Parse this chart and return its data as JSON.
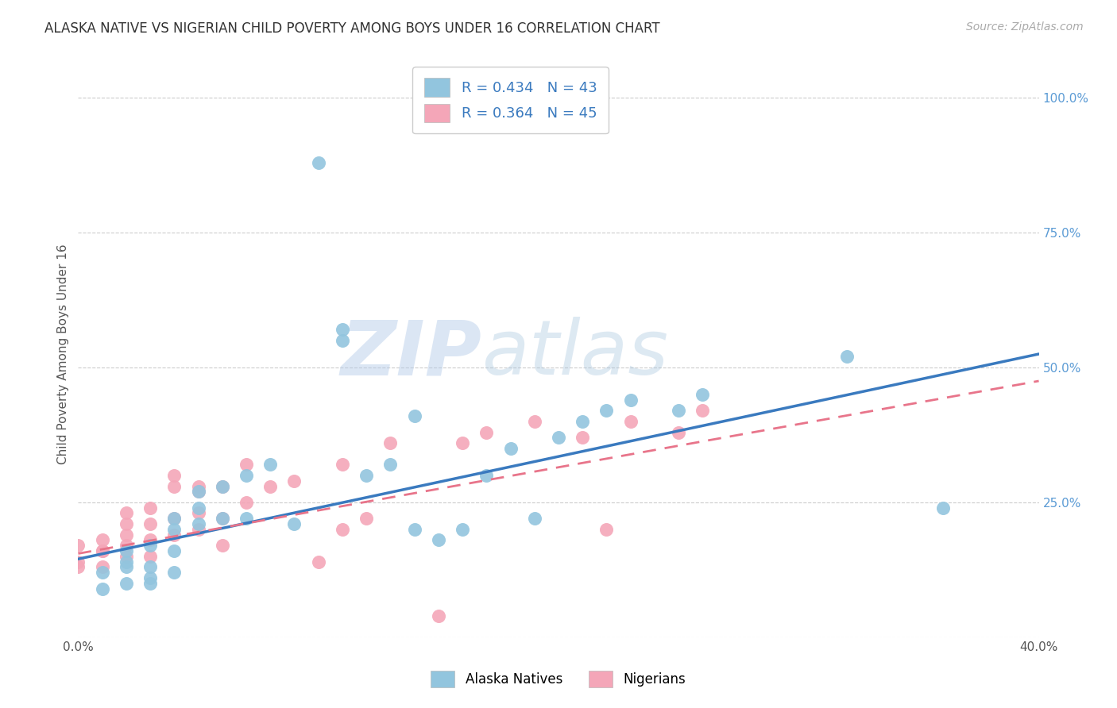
{
  "title": "ALASKA NATIVE VS NIGERIAN CHILD POVERTY AMONG BOYS UNDER 16 CORRELATION CHART",
  "source": "Source: ZipAtlas.com",
  "ylabel": "Child Poverty Among Boys Under 16",
  "xlim": [
    0.0,
    0.4
  ],
  "ylim": [
    0.0,
    1.05
  ],
  "xticks": [
    0.0,
    0.05,
    0.1,
    0.15,
    0.2,
    0.25,
    0.3,
    0.35,
    0.4
  ],
  "ytick_positions": [
    0.0,
    0.25,
    0.5,
    0.75,
    1.0
  ],
  "ytick_labels": [
    "",
    "25.0%",
    "50.0%",
    "75.0%",
    "100.0%"
  ],
  "blue_color": "#92c5de",
  "pink_color": "#f4a6b8",
  "blue_line_color": "#3a7abf",
  "pink_line_color": "#e8748a",
  "legend_text_color": "#3a7abf",
  "watermark_zip": "ZIP",
  "watermark_atlas": "atlas",
  "R_blue": 0.434,
  "N_blue": 43,
  "R_pink": 0.364,
  "N_pink": 45,
  "alaska_x": [
    0.01,
    0.01,
    0.02,
    0.02,
    0.02,
    0.02,
    0.03,
    0.03,
    0.03,
    0.03,
    0.04,
    0.04,
    0.04,
    0.04,
    0.05,
    0.05,
    0.05,
    0.06,
    0.06,
    0.07,
    0.07,
    0.08,
    0.09,
    0.1,
    0.11,
    0.11,
    0.12,
    0.13,
    0.14,
    0.14,
    0.15,
    0.16,
    0.17,
    0.18,
    0.19,
    0.2,
    0.21,
    0.22,
    0.23,
    0.25,
    0.26,
    0.32,
    0.36
  ],
  "alaska_y": [
    0.09,
    0.12,
    0.1,
    0.13,
    0.14,
    0.16,
    0.1,
    0.11,
    0.13,
    0.17,
    0.12,
    0.16,
    0.2,
    0.22,
    0.21,
    0.24,
    0.27,
    0.22,
    0.28,
    0.3,
    0.22,
    0.32,
    0.21,
    0.88,
    0.57,
    0.55,
    0.3,
    0.32,
    0.41,
    0.2,
    0.18,
    0.2,
    0.3,
    0.35,
    0.22,
    0.37,
    0.4,
    0.42,
    0.44,
    0.42,
    0.45,
    0.52,
    0.24
  ],
  "nigerian_x": [
    0.0,
    0.0,
    0.0,
    0.01,
    0.01,
    0.01,
    0.01,
    0.02,
    0.02,
    0.02,
    0.02,
    0.02,
    0.03,
    0.03,
    0.03,
    0.03,
    0.04,
    0.04,
    0.04,
    0.04,
    0.05,
    0.05,
    0.05,
    0.05,
    0.06,
    0.06,
    0.06,
    0.07,
    0.07,
    0.08,
    0.09,
    0.1,
    0.11,
    0.11,
    0.12,
    0.13,
    0.15,
    0.16,
    0.17,
    0.19,
    0.21,
    0.22,
    0.23,
    0.25,
    0.26
  ],
  "nigerian_y": [
    0.13,
    0.14,
    0.17,
    0.13,
    0.16,
    0.16,
    0.18,
    0.15,
    0.17,
    0.19,
    0.21,
    0.23,
    0.15,
    0.18,
    0.21,
    0.24,
    0.19,
    0.22,
    0.28,
    0.3,
    0.2,
    0.23,
    0.27,
    0.28,
    0.17,
    0.22,
    0.28,
    0.25,
    0.32,
    0.28,
    0.29,
    0.14,
    0.2,
    0.32,
    0.22,
    0.36,
    0.04,
    0.36,
    0.38,
    0.4,
    0.37,
    0.2,
    0.4,
    0.38,
    0.42
  ],
  "blue_intercept": 0.145,
  "blue_slope": 0.95,
  "pink_intercept": 0.155,
  "pink_slope": 0.8
}
